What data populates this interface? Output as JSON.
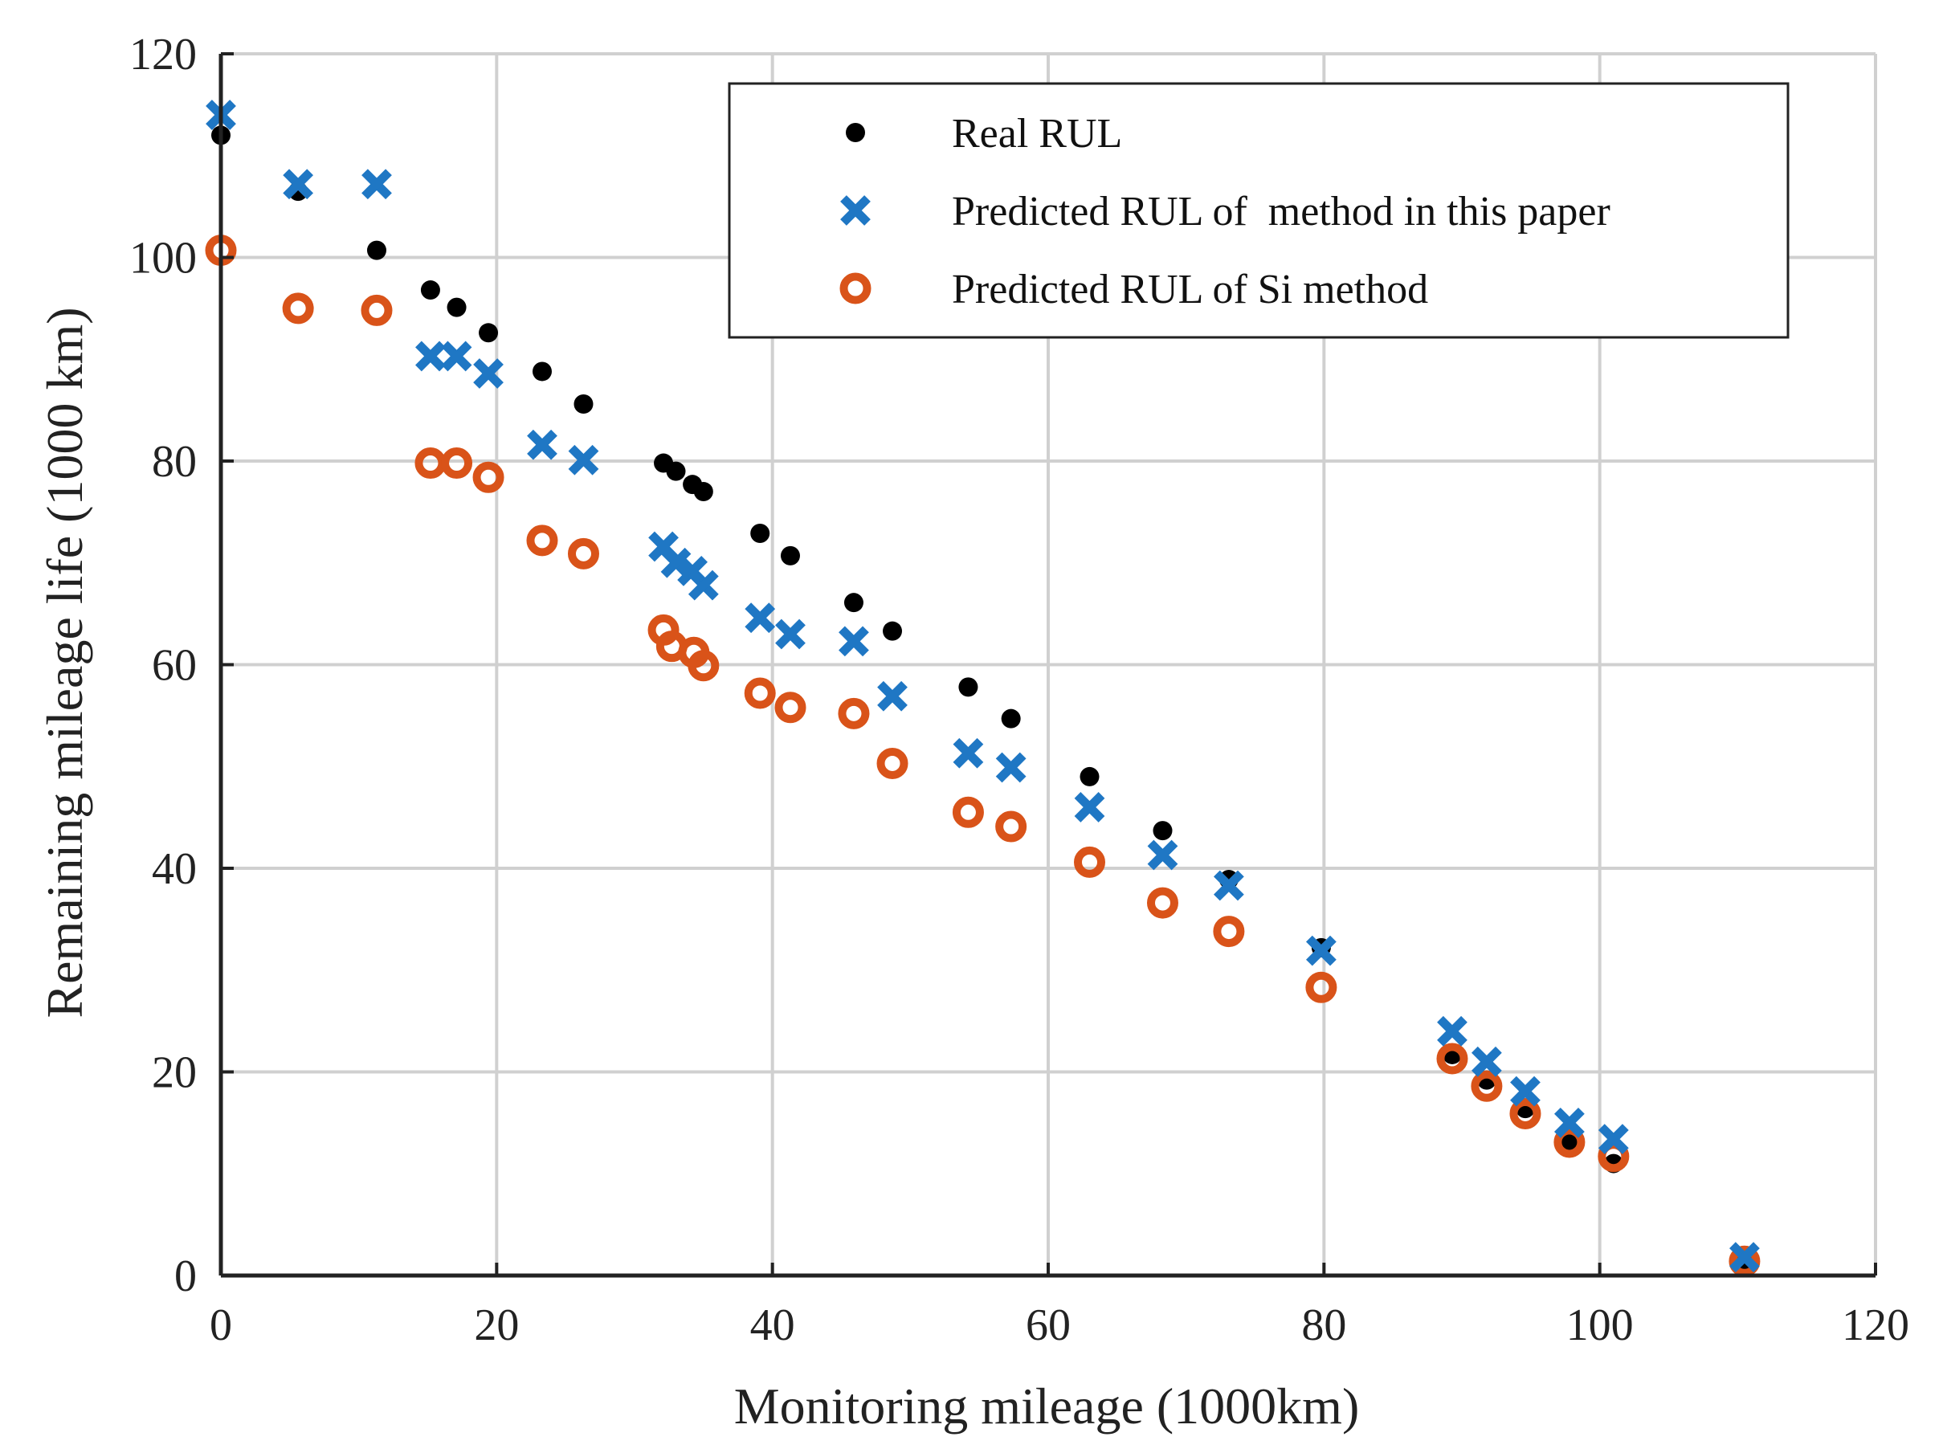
{
  "chart_data": {
    "type": "scatter",
    "title": "",
    "xlabel": "Monitoring mileage (1000km)",
    "ylabel": "Remaining mileage life (1000 km)",
    "xlim": [
      0,
      120
    ],
    "ylim": [
      0,
      120
    ],
    "xticks": [
      0,
      20,
      40,
      60,
      80,
      100,
      120
    ],
    "yticks": [
      0,
      20,
      40,
      60,
      80,
      100,
      120
    ],
    "grid": true,
    "legend_position": "top-right",
    "series": [
      {
        "name": "Real RUL",
        "marker": "dot",
        "color": "#000000",
        "points": [
          [
            0,
            112
          ],
          [
            5.6,
            106.5
          ],
          [
            11.3,
            100.7
          ],
          [
            15.2,
            96.8
          ],
          [
            17.1,
            95.1
          ],
          [
            19.4,
            92.6
          ],
          [
            23.3,
            88.8
          ],
          [
            26.3,
            85.6
          ],
          [
            32.1,
            79.8
          ],
          [
            33.0,
            79.0
          ],
          [
            34.2,
            77.7
          ],
          [
            35.0,
            77.0
          ],
          [
            39.1,
            72.9
          ],
          [
            41.3,
            70.7
          ],
          [
            45.9,
            66.1
          ],
          [
            48.7,
            63.3
          ],
          [
            54.2,
            57.8
          ],
          [
            57.3,
            54.7
          ],
          [
            63.0,
            49.0
          ],
          [
            68.3,
            43.7
          ],
          [
            73.1,
            38.9
          ],
          [
            79.8,
            32.2
          ],
          [
            89.3,
            21.7
          ],
          [
            91.8,
            19.2
          ],
          [
            94.6,
            16.4
          ],
          [
            97.8,
            13.2
          ],
          [
            101.0,
            11.0
          ],
          [
            110.5,
            1.5
          ]
        ]
      },
      {
        "name": "Predicted RUL of  method in this paper",
        "marker": "x",
        "color": "#1f77c4",
        "points": [
          [
            0,
            114
          ],
          [
            5.6,
            107.2
          ],
          [
            11.3,
            107.2
          ],
          [
            15.2,
            90.3
          ],
          [
            17.1,
            90.3
          ],
          [
            19.4,
            88.6
          ],
          [
            23.3,
            81.6
          ],
          [
            26.3,
            80.1
          ],
          [
            32.1,
            71.6
          ],
          [
            33.0,
            70.0
          ],
          [
            34.2,
            69.2
          ],
          [
            35.0,
            67.8
          ],
          [
            39.1,
            64.6
          ],
          [
            41.3,
            63.0
          ],
          [
            45.9,
            62.3
          ],
          [
            48.7,
            56.9
          ],
          [
            54.2,
            51.3
          ],
          [
            57.3,
            49.9
          ],
          [
            63.0,
            46.0
          ],
          [
            68.3,
            41.3
          ],
          [
            73.1,
            38.3
          ],
          [
            79.8,
            31.9
          ],
          [
            89.3,
            24.0
          ],
          [
            91.8,
            21.0
          ],
          [
            94.6,
            18.1
          ],
          [
            97.8,
            15.0
          ],
          [
            101.0,
            13.4
          ],
          [
            110.5,
            1.8
          ]
        ]
      },
      {
        "name": "Predicted RUL of Si method",
        "marker": "circle",
        "color": "#d95319",
        "points": [
          [
            0,
            100.7
          ],
          [
            5.6,
            95.0
          ],
          [
            11.3,
            94.8
          ],
          [
            15.2,
            79.8
          ],
          [
            17.1,
            79.8
          ],
          [
            19.4,
            78.4
          ],
          [
            23.3,
            72.2
          ],
          [
            26.3,
            70.9
          ],
          [
            32.1,
            63.4
          ],
          [
            32.7,
            61.8
          ],
          [
            34.3,
            61.2
          ],
          [
            35.0,
            59.9
          ],
          [
            39.1,
            57.2
          ],
          [
            41.3,
            55.8
          ],
          [
            45.9,
            55.2
          ],
          [
            48.7,
            50.3
          ],
          [
            54.2,
            45.5
          ],
          [
            57.3,
            44.1
          ],
          [
            63.0,
            40.6
          ],
          [
            68.3,
            36.6
          ],
          [
            73.1,
            33.8
          ],
          [
            79.8,
            28.3
          ],
          [
            89.3,
            21.3
          ],
          [
            91.8,
            18.6
          ],
          [
            94.6,
            15.9
          ],
          [
            97.8,
            13.1
          ],
          [
            101.0,
            11.7
          ],
          [
            110.5,
            1.4
          ]
        ]
      }
    ]
  }
}
